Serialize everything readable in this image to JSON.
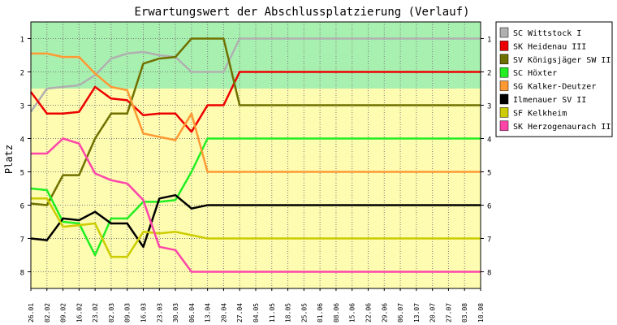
{
  "chart_data": {
    "type": "line",
    "title": "Erwartungswert der Abschlussplatzierung (Verlauf)",
    "ylabel": "Platz",
    "xlabel": "",
    "ylim": [
      8.5,
      0.5
    ],
    "y_ticks": [
      1,
      2,
      3,
      4,
      5,
      6,
      7,
      8
    ],
    "x": [
      "26.01",
      "02.02",
      "09.02",
      "16.02",
      "23.02",
      "02.03",
      "09.03",
      "16.03",
      "23.03",
      "30.03",
      "06.04",
      "13.04",
      "20.04",
      "27.04",
      "04.05",
      "11.05",
      "18.05",
      "25.05",
      "01.06",
      "08.06",
      "15.06",
      "22.06",
      "29.06",
      "06.07",
      "13.07",
      "20.07",
      "27.07",
      "03.08",
      "10.08"
    ],
    "bands": [
      {
        "from": 0.5,
        "to": 2.5,
        "color": "#a8f0b0"
      },
      {
        "from": 2.5,
        "to": 8.5,
        "color": "#fdfcb0"
      }
    ],
    "grid": true,
    "legend_position": "right",
    "series": [
      {
        "name": "SC Wittstock I",
        "color": "#b0b0b0",
        "values": [
          3.2,
          2.5,
          2.45,
          2.4,
          2.1,
          1.6,
          1.45,
          1.4,
          1.5,
          1.55,
          2.0,
          2.0,
          2.0,
          1.0,
          1.0,
          1.0,
          1.0,
          1.0,
          1.0,
          1.0,
          1.0,
          1.0,
          1.0,
          1.0,
          1.0,
          1.0,
          1.0,
          1.0,
          1.0
        ]
      },
      {
        "name": "SK Heidenau III",
        "color": "#ee0000",
        "values": [
          2.6,
          3.25,
          3.25,
          3.2,
          2.45,
          2.8,
          2.85,
          3.3,
          3.25,
          3.25,
          3.8,
          3.0,
          3.0,
          2.0,
          2.0,
          2.0,
          2.0,
          2.0,
          2.0,
          2.0,
          2.0,
          2.0,
          2.0,
          2.0,
          2.0,
          2.0,
          2.0,
          2.0,
          2.0
        ]
      },
      {
        "name": "SV Königsjäger SW II",
        "color": "#707000",
        "values": [
          5.95,
          6.0,
          5.1,
          5.1,
          4.0,
          3.25,
          3.25,
          1.75,
          1.6,
          1.55,
          1.0,
          1.0,
          1.0,
          3.0,
          3.0,
          3.0,
          3.0,
          3.0,
          3.0,
          3.0,
          3.0,
          3.0,
          3.0,
          3.0,
          3.0,
          3.0,
          3.0,
          3.0,
          3.0
        ]
      },
      {
        "name": "SC Höxter",
        "color": "#22ee22",
        "values": [
          5.5,
          5.55,
          6.5,
          6.55,
          7.5,
          6.4,
          6.4,
          5.9,
          5.9,
          5.85,
          5.0,
          4.0,
          4.0,
          4.0,
          4.0,
          4.0,
          4.0,
          4.0,
          4.0,
          4.0,
          4.0,
          4.0,
          4.0,
          4.0,
          4.0,
          4.0,
          4.0,
          4.0,
          4.0
        ]
      },
      {
        "name": "SG Kalker-Deutzer",
        "color": "#ff9933",
        "values": [
          1.45,
          1.45,
          1.55,
          1.55,
          2.05,
          2.45,
          2.55,
          3.85,
          3.95,
          4.05,
          3.25,
          5.0,
          5.0,
          5.0,
          5.0,
          5.0,
          5.0,
          5.0,
          5.0,
          5.0,
          5.0,
          5.0,
          5.0,
          5.0,
          5.0,
          5.0,
          5.0,
          5.0,
          5.0
        ]
      },
      {
        "name": "Ilmenauer SV II",
        "color": "#000000",
        "values": [
          7.0,
          7.05,
          6.4,
          6.45,
          6.2,
          6.55,
          6.55,
          7.25,
          5.8,
          5.7,
          6.1,
          6.0,
          6.0,
          6.0,
          6.0,
          6.0,
          6.0,
          6.0,
          6.0,
          6.0,
          6.0,
          6.0,
          6.0,
          6.0,
          6.0,
          6.0,
          6.0,
          6.0,
          6.0
        ]
      },
      {
        "name": "SF Kelkheim",
        "color": "#cccc00",
        "values": [
          5.8,
          5.8,
          6.65,
          6.6,
          6.55,
          7.55,
          7.55,
          6.8,
          6.85,
          6.8,
          6.9,
          7.0,
          7.0,
          7.0,
          7.0,
          7.0,
          7.0,
          7.0,
          7.0,
          7.0,
          7.0,
          7.0,
          7.0,
          7.0,
          7.0,
          7.0,
          7.0,
          7.0,
          7.0
        ]
      },
      {
        "name": "SK Herzogenaurach II",
        "color": "#ff44aa",
        "values": [
          4.45,
          4.45,
          4.0,
          4.15,
          5.05,
          5.25,
          5.35,
          5.85,
          7.25,
          7.35,
          8.0,
          8.0,
          8.0,
          8.0,
          8.0,
          8.0,
          8.0,
          8.0,
          8.0,
          8.0,
          8.0,
          8.0,
          8.0,
          8.0,
          8.0,
          8.0,
          8.0,
          8.0,
          8.0
        ]
      }
    ]
  }
}
